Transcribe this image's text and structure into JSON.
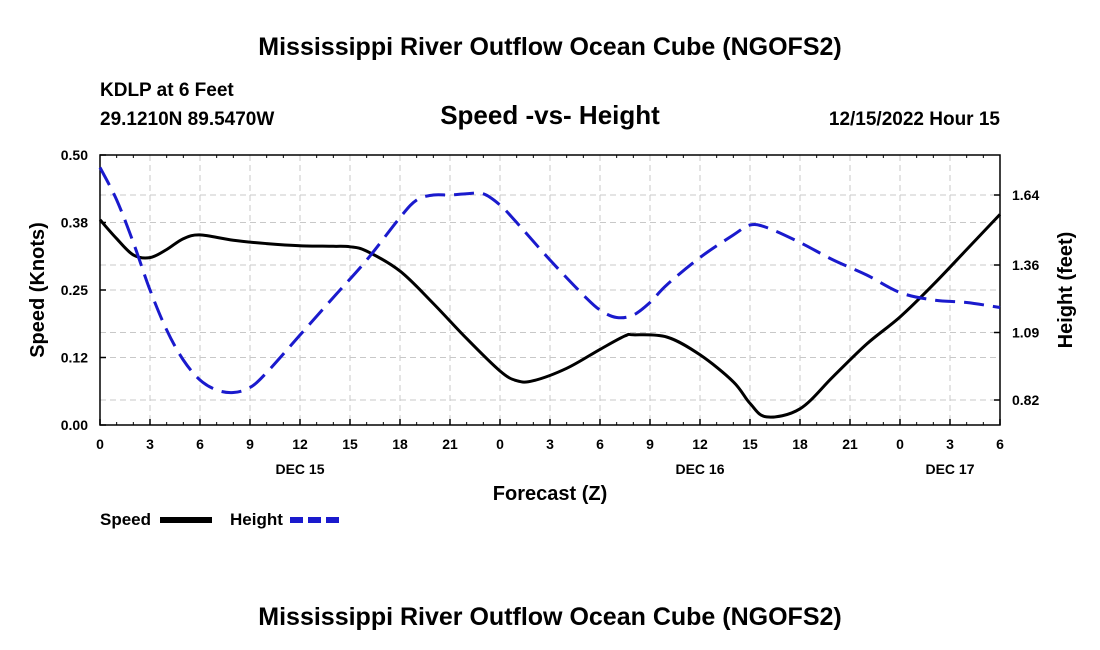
{
  "page": {
    "title": "Mississippi River Outflow Ocean Cube (NGOFS2)",
    "station": "KDLP at 6 Feet",
    "coords": "29.1210N  89.5470W",
    "subtitle": "Speed -vs- Height",
    "datetime": "12/15/2022 Hour 15",
    "footer_title": "Mississippi River Outflow Ocean Cube (NGOFS2)"
  },
  "chart_data": {
    "type": "line",
    "title": "Speed -vs- Height",
    "xlabel": "Forecast (Z)",
    "ylabel": "Speed (Knots)",
    "y2label": "Height (feet)",
    "xlim": [
      0,
      54
    ],
    "ylim": [
      0,
      0.5
    ],
    "y2lim": [
      0.72,
      1.8
    ],
    "x_ticks": [
      0,
      3,
      6,
      9,
      12,
      15,
      18,
      21,
      24,
      27,
      30,
      33,
      36,
      39,
      42,
      45,
      48,
      51,
      54
    ],
    "x_tick_labels": [
      "0",
      "3",
      "6",
      "9",
      "12",
      "15",
      "18",
      "21",
      "0",
      "3",
      "6",
      "9",
      "12",
      "15",
      "18",
      "21",
      "0",
      "3",
      "6"
    ],
    "date_labels": [
      {
        "x": 12,
        "label": "DEC 15"
      },
      {
        "x": 36,
        "label": "DEC 16"
      },
      {
        "x": 51,
        "label": "DEC 17"
      }
    ],
    "y_ticks": [
      0,
      0.125,
      0.25,
      0.375,
      0.5
    ],
    "y_tick_labels": [
      "0.00",
      "0.12",
      "0.25",
      "0.38",
      "0.50"
    ],
    "y2_ticks": [
      0.82,
      1.09,
      1.36,
      1.64
    ],
    "y2_tick_labels": [
      "0.82",
      "1.09",
      "1.36",
      "1.64"
    ],
    "series": [
      {
        "name": "Speed",
        "axis": "left",
        "color": "#000000",
        "dash": "solid",
        "x": [
          0,
          1,
          2,
          3,
          4,
          5,
          6,
          8,
          10,
          12,
          14,
          15,
          16,
          18,
          20,
          22,
          24,
          25,
          26,
          28,
          30,
          31.5,
          32,
          34,
          36,
          38,
          39,
          40,
          42,
          44,
          46,
          48,
          50,
          52,
          54
        ],
        "y": [
          0.38,
          0.345,
          0.315,
          0.31,
          0.325,
          0.345,
          0.352,
          0.342,
          0.336,
          0.332,
          0.331,
          0.33,
          0.322,
          0.285,
          0.225,
          0.16,
          0.1,
          0.082,
          0.082,
          0.105,
          0.14,
          0.165,
          0.167,
          0.163,
          0.13,
          0.08,
          0.04,
          0.015,
          0.03,
          0.09,
          0.15,
          0.2,
          0.26,
          0.325,
          0.39
        ]
      },
      {
        "name": "Height",
        "axis": "right",
        "color": "#1a1acd",
        "dash": "dashed",
        "x": [
          0,
          1,
          2,
          3,
          4,
          5,
          6,
          7,
          8,
          9,
          10,
          12,
          14,
          16,
          18,
          19,
          20,
          21,
          22,
          23,
          24,
          25,
          27,
          29,
          30,
          31,
          32,
          33,
          34,
          36,
          38,
          39,
          40,
          42,
          44,
          46,
          48,
          50,
          52,
          54
        ],
        "y": [
          1.75,
          1.62,
          1.45,
          1.26,
          1.1,
          0.98,
          0.9,
          0.86,
          0.85,
          0.87,
          0.93,
          1.08,
          1.23,
          1.38,
          1.55,
          1.62,
          1.64,
          1.64,
          1.645,
          1.645,
          1.6,
          1.53,
          1.38,
          1.24,
          1.18,
          1.15,
          1.16,
          1.21,
          1.28,
          1.39,
          1.48,
          1.52,
          1.51,
          1.45,
          1.38,
          1.32,
          1.25,
          1.22,
          1.21,
          1.19
        ]
      }
    ],
    "legend": {
      "position": "bottom-left",
      "items": [
        "Speed",
        "Height"
      ]
    }
  }
}
